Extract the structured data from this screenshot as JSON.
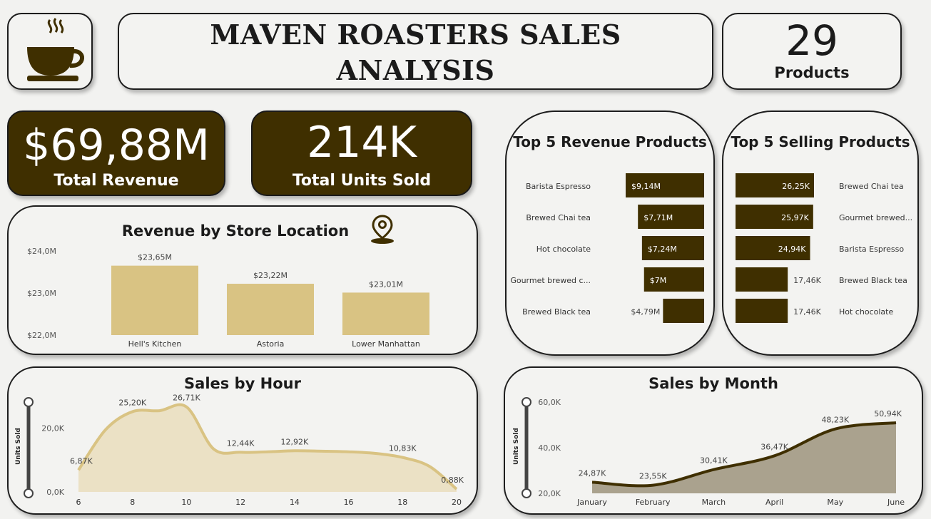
{
  "header": {
    "logo_icon": "coffee-cup-icon",
    "title": "MAVEN ROASTERS SALES ANALYSIS",
    "products_count": "29",
    "products_label": "Products"
  },
  "kpis": {
    "revenue_value": "$69,88M",
    "revenue_label": "Total Revenue",
    "units_value": "214K",
    "units_label": "Total Units Sold"
  },
  "colors": {
    "dark_brown": "#3f2f00",
    "sand": "#d9c383",
    "hour_fill": "#ebe1c5",
    "hour_line": "#d9c383",
    "month_fill": "#aaa28e",
    "month_line": "#3f2f00"
  },
  "chart_data": [
    {
      "type": "bar",
      "title": "Revenue by Store Location",
      "title_icon": "location-pin-icon",
      "categories": [
        "Hell's Kitchen",
        "Astoria",
        "Lower Manhattan"
      ],
      "values": [
        23.65,
        23.22,
        23.01
      ],
      "data_labels": [
        "$23,65M",
        "$23,22M",
        "$23,01M"
      ],
      "ylim": [
        22.0,
        24.0
      ],
      "y_ticks": [
        24.0,
        23.0,
        22.0
      ],
      "y_tick_labels": [
        "$24,0M",
        "$23,0M",
        "$22,0M"
      ],
      "grid": false
    },
    {
      "type": "bar",
      "orientation": "horizontal",
      "title": "Top 5 Revenue Products",
      "categories": [
        "Barista Espresso",
        "Brewed Chai tea",
        "Hot chocolate",
        "Gourmet brewed c...",
        "Brewed Black tea"
      ],
      "values": [
        9.14,
        7.71,
        7.24,
        7.0,
        4.79
      ],
      "data_labels": [
        "$9,14M",
        "$7,71M",
        "$7,24M",
        "$7M",
        "$4,79M"
      ],
      "xlim": [
        0,
        9.14
      ]
    },
    {
      "type": "bar",
      "orientation": "horizontal",
      "title": "Top 5 Selling Products",
      "categories": [
        "Brewed Chai tea",
        "Gourmet brewed...",
        "Barista Espresso",
        "Brewed Black tea",
        "Hot chocolate"
      ],
      "values": [
        26.25,
        25.97,
        24.94,
        17.46,
        17.46
      ],
      "data_labels": [
        "26,25K",
        "25,97K",
        "24,94K",
        "17,46K",
        "17,46K"
      ],
      "xlim": [
        0,
        26.25
      ]
    },
    {
      "type": "area",
      "title": "Sales by Hour",
      "ylabel": "Units Sold",
      "x": [
        6,
        7,
        8,
        9,
        10,
        11,
        12,
        13,
        14,
        15,
        16,
        17,
        18,
        19,
        20
      ],
      "values": [
        6.87,
        19.5,
        25.2,
        25.5,
        26.71,
        13.5,
        12.44,
        12.6,
        12.92,
        12.8,
        12.6,
        12.1,
        10.83,
        8.0,
        0.88
      ],
      "point_labels": [
        {
          "x": 6,
          "text": "6,87K"
        },
        {
          "x": 8,
          "text": "25,20K"
        },
        {
          "x": 10,
          "text": "26,71K"
        },
        {
          "x": 12,
          "text": "12,44K"
        },
        {
          "x": 14,
          "text": "12,92K"
        },
        {
          "x": 18,
          "text": "10,83K"
        },
        {
          "x": 20,
          "text": "0,88K"
        }
      ],
      "x_ticks": [
        6,
        8,
        10,
        12,
        14,
        16,
        18,
        20
      ],
      "y_ticks": [
        20,
        0
      ],
      "y_tick_labels": [
        "20,0K",
        "0,0K"
      ],
      "ylim": [
        0,
        30
      ]
    },
    {
      "type": "area",
      "title": "Sales by Month",
      "ylabel": "Units Sold",
      "categories": [
        "January",
        "February",
        "March",
        "April",
        "May",
        "June"
      ],
      "values": [
        24.87,
        23.55,
        30.41,
        36.47,
        48.23,
        50.94
      ],
      "data_labels": [
        "24,87K",
        "23,55K",
        "30,41K",
        "36,47K",
        "48,23K",
        "50,94K"
      ],
      "y_ticks": [
        60,
        40,
        20
      ],
      "y_tick_labels": [
        "60,0K",
        "40,0K",
        "20,0K"
      ],
      "ylim": [
        20,
        60
      ]
    }
  ]
}
